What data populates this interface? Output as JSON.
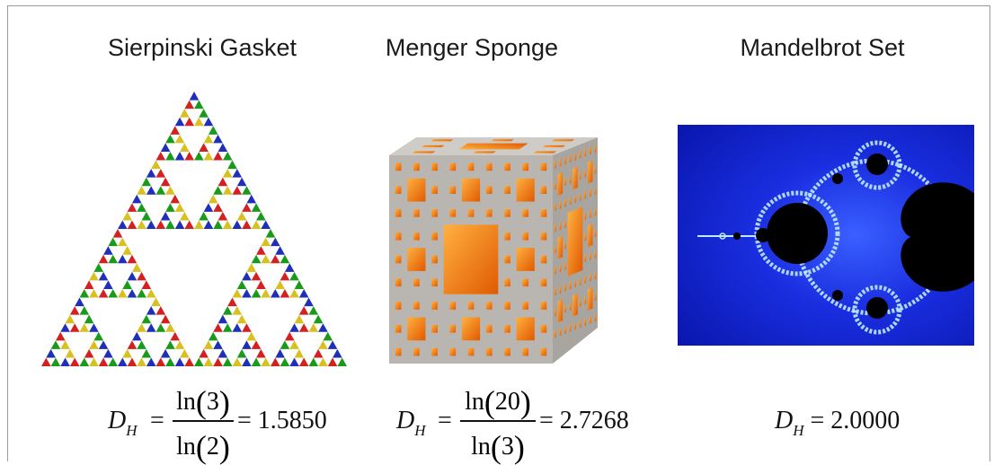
{
  "panels": [
    {
      "title": "Sierpinski Gasket",
      "formula": {
        "lhs": "D",
        "sub": "H",
        "num_fn": "ln",
        "num_arg": "3",
        "den_fn": "ln",
        "den_arg": "2",
        "result": "= 1.5850"
      }
    },
    {
      "title": "Menger Sponge",
      "formula": {
        "lhs": "D",
        "sub": "H",
        "num_fn": "ln",
        "num_arg": "20",
        "den_fn": "ln",
        "den_arg": "3",
        "result": "= 2.7268"
      }
    },
    {
      "title": "Mandelbrot Set",
      "formula": {
        "lhs": "D",
        "sub": "H",
        "result": "= 2.0000"
      }
    }
  ],
  "colors": {
    "gasket": [
      "#1f2fb8",
      "#d42020",
      "#1a9a1a",
      "#d8c020"
    ],
    "sponge_face": "#b9b6b2",
    "sponge_hole": "#ff8a10",
    "mandel_bg": "#1020c8",
    "mandel_edge": "#bfe8ff",
    "mandel_body": "#000000"
  }
}
